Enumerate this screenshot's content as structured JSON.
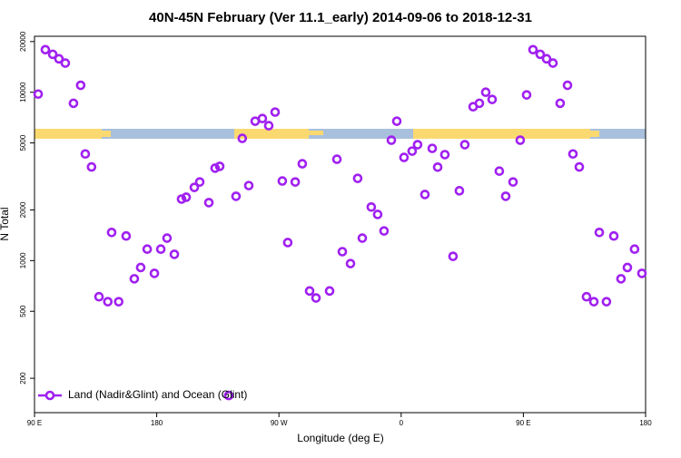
{
  "chart_data": {
    "type": "scatter",
    "title": "40N-45N February (Ver 11.1_early)   2014-09-06 to 2018-12-31",
    "x_label": "Longitude (deg E)",
    "y_label": "N Total",
    "log_y": true,
    "legend": "bottom-left",
    "xlim": [
      90,
      540
    ],
    "ylim": [
      125,
      21500
    ],
    "xticks": [
      {
        "value": 90,
        "label": "90 E"
      },
      180,
      {
        "value": 270,
        "label": "90 W"
      },
      {
        "value": 360,
        "label": "0"
      },
      {
        "value": 450,
        "label": "90 E"
      },
      {
        "value": 540,
        "label": "180"
      }
    ],
    "yticks": [
      200,
      500,
      1000,
      2000,
      5000,
      10000,
      20000
    ],
    "x": [
      92.7,
      98,
      103.4,
      108,
      112.7,
      118.7,
      124,
      127.4,
      132,
      137.5,
      144,
      146.8,
      152,
      157.5,
      163.5,
      168.2,
      173,
      178.3,
      183,
      187.6,
      193,
      198.3,
      201.7,
      207.7,
      211.7,
      218.4,
      223,
      226.4,
      233,
      238.4,
      243,
      247.8,
      252.5,
      257.8,
      262.5,
      267.2,
      272.5,
      276.5,
      282,
      287.2,
      292.6,
      297.3,
      307.3,
      312.7,
      316.7,
      322.7,
      328,
      331.4,
      338,
      342.7,
      347.4,
      352.8,
      356.8,
      362.1,
      368.1,
      372.1,
      377.5,
      382.9,
      386.9,
      392.2,
      398.2,
      402.9,
      406.9,
      413,
      417.6,
      422.3,
      427,
      432.3,
      437,
      442.4,
      447.7,
      452.4,
      457.1,
      462.4,
      467.1,
      471.8,
      477.1,
      482.5,
      486.5,
      491.2,
      496.5,
      501.9,
      505.9,
      511.2,
      516.6,
      521.9,
      526.6,
      531.9,
      537.3
    ],
    "series": [
      {
        "name": "Land (Nadir&Glint) and Ocean (Glint)",
        "color": "#a020f0",
        "values": [
          9750,
          17900,
          16800,
          15800,
          14900,
          8600,
          11000,
          4300,
          3600,
          610,
          570,
          1470,
          570,
          1400,
          780,
          910,
          1170,
          840,
          1170,
          1360,
          1090,
          2320,
          2380,
          2720,
          2930,
          2210,
          3540,
          3630,
          158,
          2410,
          5320,
          2790,
          6730,
          6980,
          6330,
          7620,
          2970,
          1280,
          2930,
          3760,
          660,
          600,
          660,
          4000,
          1130,
          960,
          3080,
          1360,
          2080,
          1880,
          1500,
          5190,
          6730,
          4100,
          4470,
          4880,
          2470,
          4640,
          3590,
          4260,
          1060,
          2600,
          4880,
          8200,
          8600,
          10000,
          9060,
          3400,
          2410,
          2930,
          5190,
          9640,
          17900,
          16800,
          15800,
          14900,
          8600,
          11000,
          4300,
          3600,
          610,
          570,
          1470,
          570,
          1400,
          780,
          910,
          1170,
          840
        ]
      }
    ]
  }
}
